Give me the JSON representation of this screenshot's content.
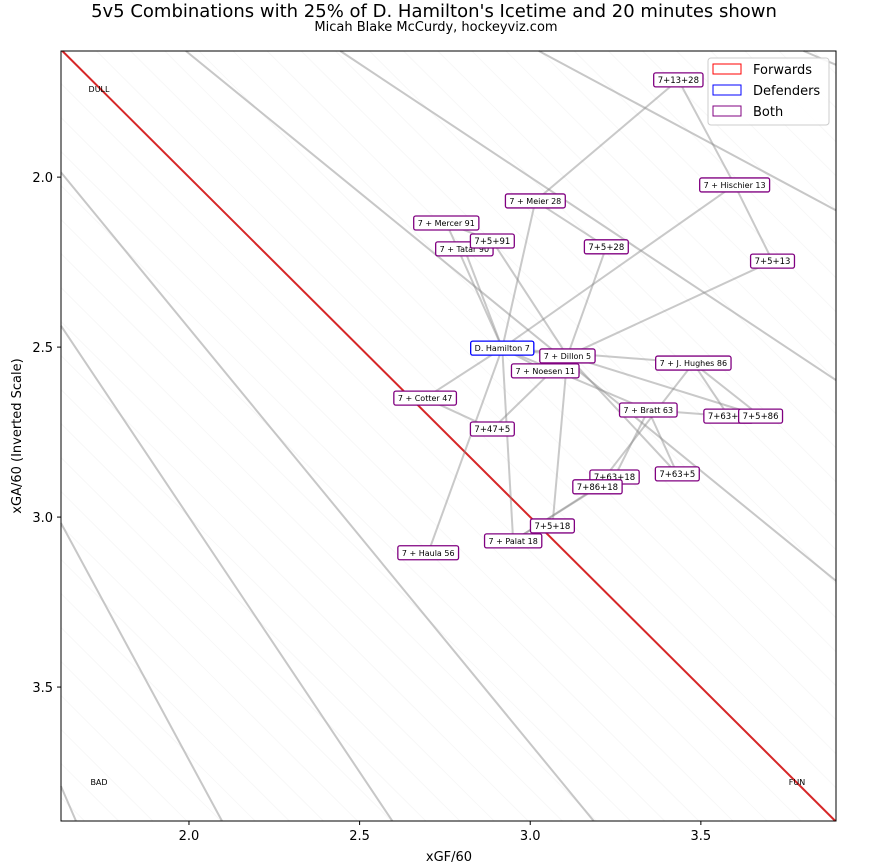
{
  "chart_data": {
    "type": "scatter",
    "title": "5v5 Combinations with 25% of D. Hamilton's Icetime and 20 minutes shown",
    "subtitle": "Micah Blake McCurdy, hockeyviz.com",
    "xlabel": "xGF/60",
    "ylabel": "xGA/60 (Inverted Scale)",
    "xlim": [
      1.625,
      3.896
    ],
    "ylim": [
      3.894,
      1.629
    ],
    "y_inverted": true,
    "xticks": [
      "2.0",
      "2.5",
      "3.0",
      "3.5"
    ],
    "yticks": [
      "2.0",
      "2.5",
      "3.0",
      "3.5"
    ],
    "grid": false,
    "legend": {
      "placement": "top-right",
      "entries": [
        {
          "label": "Forwards",
          "color": "#ff0000"
        },
        {
          "label": "Defenders",
          "color": "#0000ff"
        },
        {
          "label": "Both",
          "color": "#800080"
        }
      ]
    },
    "corner_labels": {
      "top_left": "DULL",
      "bottom_left": "BAD",
      "bottom_right": "FUN"
    },
    "break_even_color": "#d62728",
    "xgf_pct_isolines": [
      0.3,
      0.35,
      0.4,
      0.45,
      0.55,
      0.6,
      0.65,
      0.7
    ],
    "nodes": [
      {
        "id": "ham",
        "label": "D. Hamilton 7",
        "x": 2.918,
        "y": 2.503,
        "group": "Defenders"
      },
      {
        "id": "d5",
        "label": "7 + Dillon 5",
        "x": 3.109,
        "y": 2.526,
        "group": "Both"
      },
      {
        "id": "d11",
        "label": "7 + Noesen 11",
        "x": 3.044,
        "y": 2.57,
        "group": "Both"
      },
      {
        "id": "d91",
        "label": "7 + Mercer 91",
        "x": 2.754,
        "y": 2.135,
        "group": "Both"
      },
      {
        "id": "d90",
        "label": "7 + Tatar 90",
        "x": 2.807,
        "y": 2.211,
        "group": "Both"
      },
      {
        "id": "d28",
        "label": "7 + Meier 28",
        "x": 3.015,
        "y": 2.07,
        "group": "Both"
      },
      {
        "id": "d13",
        "label": "7 + Hischier 13",
        "x": 3.599,
        "y": 2.023,
        "group": "Both"
      },
      {
        "id": "d86",
        "label": "7 + J. Hughes 86",
        "x": 3.478,
        "y": 2.547,
        "group": "Both"
      },
      {
        "id": "d63",
        "label": "7 + Bratt 63",
        "x": 3.346,
        "y": 2.685,
        "group": "Both"
      },
      {
        "id": "d18",
        "label": "7 + Palat 18",
        "x": 2.95,
        "y": 3.07,
        "group": "Both"
      },
      {
        "id": "d56",
        "label": "7 + Haula 56",
        "x": 2.701,
        "y": 3.105,
        "group": "Both"
      },
      {
        "id": "d47",
        "label": "7 + Cotter 47",
        "x": 2.692,
        "y": 2.65,
        "group": "Both"
      },
      {
        "id": "t5_91",
        "label": "7+5+91",
        "x": 2.889,
        "y": 2.188,
        "group": "Both"
      },
      {
        "id": "t5_28",
        "label": "7+5+28",
        "x": 3.223,
        "y": 2.205,
        "group": "Both"
      },
      {
        "id": "t13_28",
        "label": "7+13+28",
        "x": 3.434,
        "y": 1.714,
        "group": "Both"
      },
      {
        "id": "t5_13",
        "label": "7+5+13",
        "x": 3.71,
        "y": 2.247,
        "group": "Both"
      },
      {
        "id": "t63_86",
        "label": "7+63+86",
        "x": 3.581,
        "y": 2.703,
        "group": "Both"
      },
      {
        "id": "t5_86",
        "label": "7+5+86",
        "x": 3.675,
        "y": 2.703,
        "group": "Both"
      },
      {
        "id": "t63_5",
        "label": "7+63+5",
        "x": 3.431,
        "y": 2.873,
        "group": "Both"
      },
      {
        "id": "t63_18",
        "label": "7+63+18",
        "x": 3.247,
        "y": 2.882,
        "group": "Both"
      },
      {
        "id": "t86_18",
        "label": "7+86+18",
        "x": 3.197,
        "y": 2.911,
        "group": "Both"
      },
      {
        "id": "t5_18",
        "label": "7+5+18",
        "x": 3.065,
        "y": 3.026,
        "group": "Both"
      },
      {
        "id": "t47_5",
        "label": "7+47+5",
        "x": 2.889,
        "y": 2.741,
        "group": "Both"
      }
    ],
    "edges": [
      [
        "ham",
        "d5"
      ],
      [
        "ham",
        "d11"
      ],
      [
        "ham",
        "d91"
      ],
      [
        "ham",
        "d90"
      ],
      [
        "ham",
        "d28"
      ],
      [
        "ham",
        "d13"
      ],
      [
        "ham",
        "d86"
      ],
      [
        "ham",
        "d63"
      ],
      [
        "ham",
        "d18"
      ],
      [
        "ham",
        "d56"
      ],
      [
        "ham",
        "d47"
      ],
      [
        "t5_91",
        "d5"
      ],
      [
        "t5_91",
        "d91"
      ],
      [
        "t5_28",
        "d5"
      ],
      [
        "t5_28",
        "d28"
      ],
      [
        "t13_28",
        "d13"
      ],
      [
        "t13_28",
        "d28"
      ],
      [
        "t5_13",
        "d5"
      ],
      [
        "t5_13",
        "d13"
      ],
      [
        "t63_86",
        "d63"
      ],
      [
        "t63_86",
        "d86"
      ],
      [
        "t5_86",
        "d5"
      ],
      [
        "t5_86",
        "d86"
      ],
      [
        "t63_5",
        "d63"
      ],
      [
        "t63_5",
        "d5"
      ],
      [
        "t63_18",
        "d63"
      ],
      [
        "t63_18",
        "d18"
      ],
      [
        "t86_18",
        "d86"
      ],
      [
        "t86_18",
        "d18"
      ],
      [
        "t5_18",
        "d5"
      ],
      [
        "t5_18",
        "d18"
      ],
      [
        "t47_5",
        "d47"
      ],
      [
        "t47_5",
        "d5"
      ]
    ]
  }
}
